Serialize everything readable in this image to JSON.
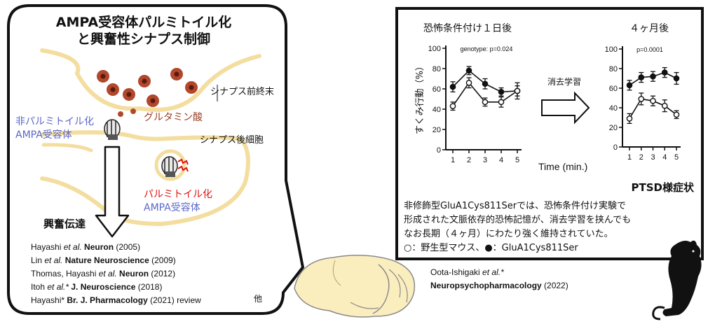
{
  "left_panel": {
    "title_line1": "AMPA受容体パルミトイル化",
    "title_line2": "と興奮性シナプス制御",
    "label_presynaptic": "シナプス前終末",
    "label_glutamate": "グルタミン酸",
    "label_postsynaptic": "シナプス後細胞",
    "label_nonpalm_line1": "非パルミトイル化",
    "label_nonpalm_line2": "AMPA受容体",
    "label_palm_line1": "パルミトイル化",
    "label_palm_line2": "AMPA受容体",
    "label_transmission": "興奮伝達",
    "refs": [
      {
        "pre": "Hayashi ",
        "italic": "et al.",
        "journal": " Neuron",
        "year": " (2005)",
        "tail": ""
      },
      {
        "pre": "Lin ",
        "italic": "et al.",
        "journal": " Nature Neuroscience",
        "year": " (2009)",
        "tail": ""
      },
      {
        "pre": "Thomas, Hayashi ",
        "italic": "et al.",
        "journal": " Neuron",
        "year": " (2012)",
        "tail": ""
      },
      {
        "pre": "Itoh ",
        "italic": "et al.*",
        "journal": " J. Neuroscience",
        "year": " (2018)",
        "tail": ""
      },
      {
        "pre": "Hayashi*",
        "italic": "",
        "journal": " Br. J. Pharmacology",
        "year": " (2021) review",
        "tail": "他"
      }
    ],
    "colors": {
      "vesicle_fill": "#b1482c",
      "vesicle_center": "#5a1a10",
      "membrane": "#f3dea0",
      "blue_text": "#5b67c8",
      "red_text": "#e01010",
      "glutamate_text": "#9a3b22"
    }
  },
  "right_panel": {
    "title_day1": "恐怖条件付け１日後",
    "title_month4": "４ヶ月後",
    "y_label": "すくみ行動（%）",
    "x_label": "Time (min.)",
    "arrow_label": "消去学習",
    "ptsd_label": "PTSD様症状",
    "description_lines": [
      "非修飾型GluA1Cys811Serでは、恐怖条件付け実験で",
      "形成された文脈依存的恐怖記憶が、消去学習を挟んでも",
      "なお長期（４ヶ月）にわたり強く維持されていた。"
    ],
    "legend_text": "○：野生型マウス、●：GluA1Cys811Ser",
    "citation_author_plain": "Oota-Ishigaki ",
    "citation_author_italic": "et al.*",
    "citation_journal": "Neuropsychopharmacology",
    "citation_year": " (2022)"
  },
  "chart_data": [
    {
      "type": "line",
      "title": "恐怖条件付け１日後",
      "annotation": "genotype: p=0.024",
      "xlabel": "Time (min.)",
      "ylabel": "すくみ行動（%）",
      "x": [
        1,
        2,
        3,
        4,
        5
      ],
      "ylim": [
        0,
        100
      ],
      "yticks": [
        0,
        20,
        40,
        60,
        80,
        100
      ],
      "series": [
        {
          "marker": "filled",
          "values": [
            62,
            78,
            65,
            57,
            58
          ],
          "err": [
            5,
            4,
            5,
            4,
            5
          ]
        },
        {
          "marker": "open",
          "values": [
            43,
            66,
            47,
            47,
            58
          ],
          "err": [
            4,
            5,
            4,
            5,
            8
          ]
        }
      ]
    },
    {
      "type": "line",
      "title": "４ヶ月後",
      "annotation": "p=0.0001",
      "xlabel": "Time (min.)",
      "ylabel": "すくみ行動（%）",
      "x": [
        1,
        2,
        3,
        4,
        5
      ],
      "ylim": [
        0,
        100
      ],
      "yticks": [
        0,
        20,
        40,
        60,
        80,
        100
      ],
      "series": [
        {
          "marker": "filled",
          "values": [
            63,
            71,
            72,
            76,
            70
          ],
          "err": [
            5,
            5,
            5,
            5,
            6
          ]
        },
        {
          "marker": "open",
          "values": [
            29,
            49,
            47,
            42,
            33
          ],
          "err": [
            5,
            6,
            5,
            6,
            4
          ]
        }
      ]
    }
  ]
}
